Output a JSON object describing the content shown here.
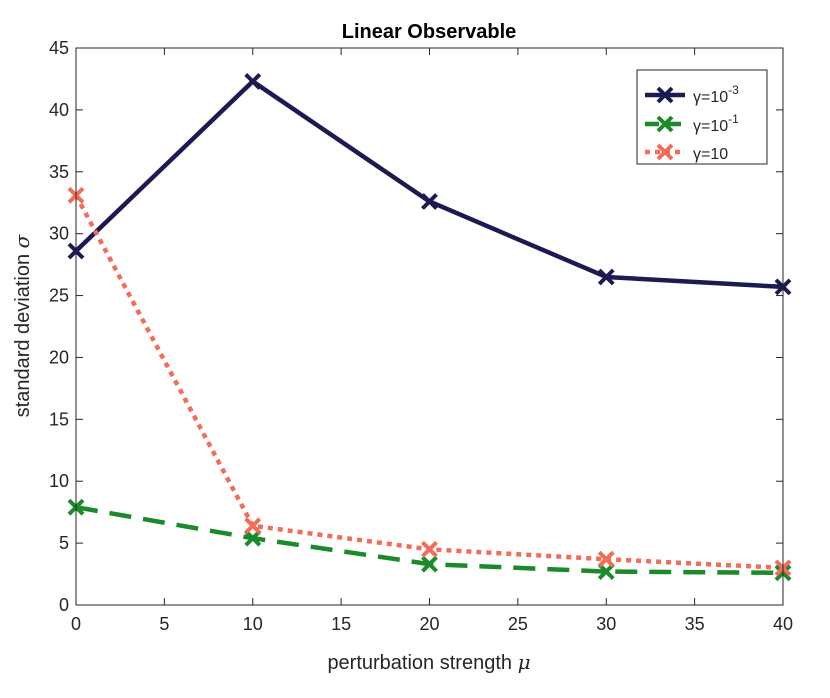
{
  "chart_data": {
    "type": "line",
    "title": "Linear Observable",
    "xlabel": "perturbation strength",
    "xlabel_symbol": "μ",
    "ylabel": "standard deviation",
    "ylabel_symbol": "σ",
    "xlim": [
      0,
      40
    ],
    "ylim": [
      0,
      45
    ],
    "xticks": [
      0,
      5,
      10,
      15,
      20,
      25,
      30,
      35,
      40
    ],
    "yticks": [
      0,
      5,
      10,
      15,
      20,
      25,
      30,
      35,
      40,
      45
    ],
    "grid": false,
    "legend_position": "top-right",
    "x": [
      0,
      10,
      20,
      30,
      40
    ],
    "series": [
      {
        "name": "γ=10",
        "exponent": "-3",
        "color": "#1c1a53",
        "dash": "solid",
        "values": [
          28.6,
          42.3,
          32.6,
          26.5,
          25.7
        ]
      },
      {
        "name": "γ=10",
        "exponent": "-1",
        "color": "#1a8a2a",
        "dash": "dashed",
        "values": [
          7.9,
          5.4,
          3.3,
          2.7,
          2.6
        ]
      },
      {
        "name": "γ=10",
        "exponent": "",
        "color": "#f26c5a",
        "dash": "dotted",
        "values": [
          33.1,
          6.4,
          4.5,
          3.7,
          3.0
        ]
      }
    ]
  }
}
